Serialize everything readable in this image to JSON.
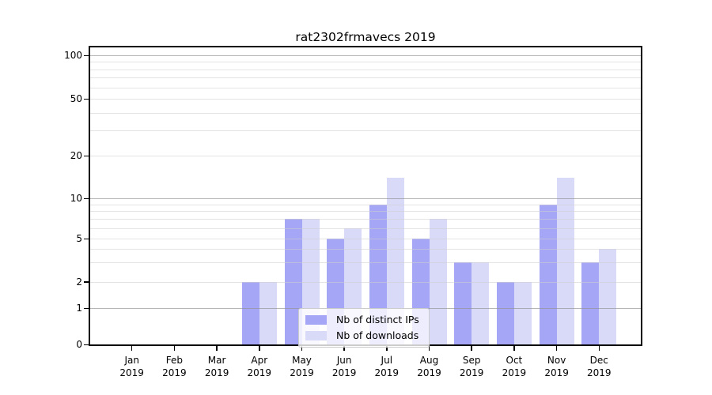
{
  "title": "rat2302frmavecs 2019",
  "chart_data": {
    "type": "bar",
    "title": "rat2302frmavecs 2019",
    "xlabel": "",
    "ylabel": "",
    "categories": [
      "Jan 2019",
      "Feb 2019",
      "Mar 2019",
      "Apr 2019",
      "May 2019",
      "Jun 2019",
      "Jul 2019",
      "Aug 2019",
      "Sep 2019",
      "Oct 2019",
      "Nov 2019",
      "Dec 2019"
    ],
    "series": [
      {
        "name": "Nb of distinct IPs",
        "color": "#a6a6f6",
        "values": [
          0,
          0,
          0,
          2,
          7,
          5,
          9,
          5,
          3,
          2,
          9,
          3
        ]
      },
      {
        "name": "Nb of downloads",
        "color": "#d9d9f8",
        "values": [
          0,
          0,
          0,
          2,
          7,
          6,
          14,
          7,
          3,
          2,
          14,
          4
        ]
      }
    ],
    "y_scale": "log-like with 0 baseline",
    "y_ticks": [
      0,
      1,
      2,
      5,
      10,
      20,
      50,
      100
    ],
    "y_gridlines_major": [
      1,
      10,
      100
    ],
    "y_gridlines_minor": [
      2,
      3,
      4,
      5,
      6,
      7,
      8,
      9,
      20,
      30,
      40,
      50,
      60,
      70,
      80,
      90
    ],
    "ylim": [
      0,
      113
    ],
    "grid": true,
    "legend_position": "lower center"
  },
  "colors": {
    "axis": "#000000",
    "grid_major": "#b5b5b5",
    "grid_minor": "#e7e7e7",
    "legend_border": "#cccccc"
  }
}
